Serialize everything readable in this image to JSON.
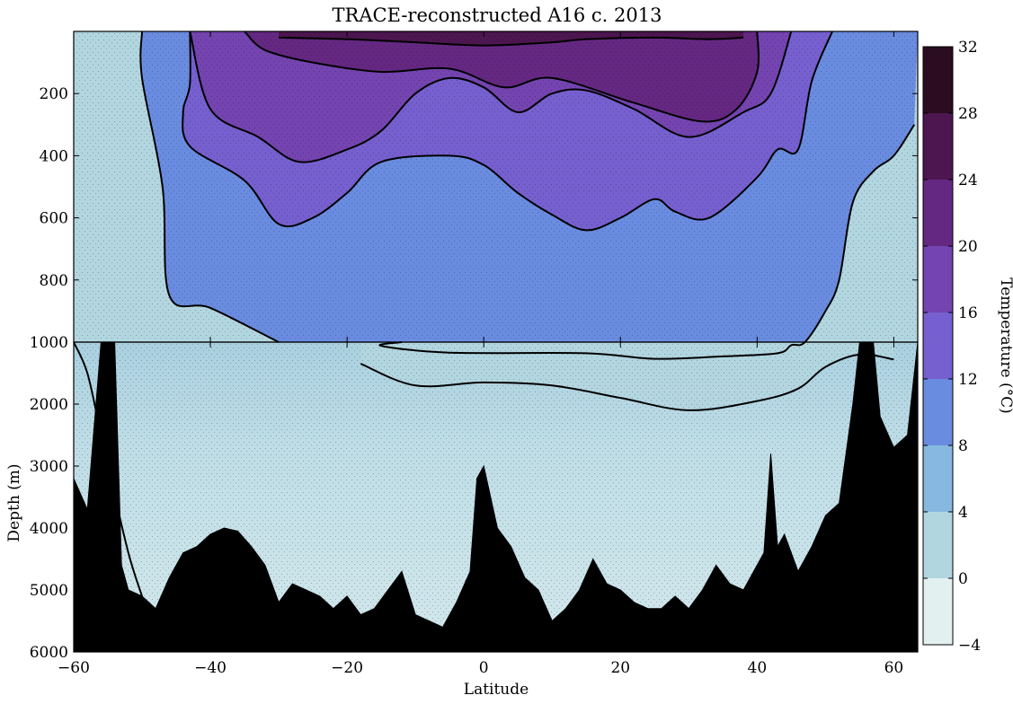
{
  "chart_data": {
    "type": "heatmap",
    "title": "TRACE-reconstructed A16 c. 2013",
    "xlabel": "Latitude",
    "ylabel": "Depth (m)",
    "colorbar_label": "Temperature (°C)",
    "xlim": [
      -60,
      63.5
    ],
    "x_ticks": [
      -60,
      -40,
      -20,
      0,
      20,
      40,
      60
    ],
    "x_tick_labels": [
      "−60",
      "−40",
      "−20",
      "0",
      "20",
      "40",
      "60"
    ],
    "upper_panel": {
      "ylim": [
        1000,
        0
      ],
      "y_ticks": [
        200,
        400,
        600,
        800,
        1000
      ],
      "y_tick_labels": [
        "200",
        "400",
        "600",
        "800",
        "1000"
      ]
    },
    "lower_panel": {
      "ylim": [
        6000,
        1000
      ],
      "y_ticks": [
        2000,
        3000,
        4000,
        5000,
        6000
      ],
      "y_tick_labels": [
        "2000",
        "3000",
        "4000",
        "5000",
        "6000"
      ]
    },
    "colorbar": {
      "levels": [
        -4,
        0,
        4,
        8,
        12,
        16,
        20,
        24,
        28,
        32
      ],
      "tick_labels": [
        "−4",
        "0",
        "4",
        "8",
        "12",
        "16",
        "20",
        "24",
        "28",
        "32"
      ],
      "colors": [
        "#e3f0f0",
        "#b2d6e0",
        "#86b8e0",
        "#6a8ce0",
        "#7660cf",
        "#7444b0",
        "#652882",
        "#4d1650",
        "#2a0d20"
      ]
    },
    "isotherms": [
      {
        "temp": 24,
        "points": [
          [
            -30,
            20
          ],
          [
            -20,
            25
          ],
          [
            -10,
            35
          ],
          [
            0,
            45
          ],
          [
            10,
            35
          ],
          [
            15,
            25
          ],
          [
            25,
            20
          ],
          [
            33,
            25
          ],
          [
            38,
            20
          ]
        ]
      },
      {
        "temp": 20,
        "points": [
          [
            -35,
            0
          ],
          [
            -32,
            60
          ],
          [
            -25,
            100
          ],
          [
            -15,
            130
          ],
          [
            -5,
            120
          ],
          [
            3,
            180
          ],
          [
            10,
            150
          ],
          [
            22,
            230
          ],
          [
            32,
            290
          ],
          [
            37,
            250
          ],
          [
            40,
            130
          ],
          [
            40,
            0
          ]
        ]
      },
      {
        "temp": 16,
        "points": [
          [
            -43,
            0
          ],
          [
            -40,
            250
          ],
          [
            -33,
            340
          ],
          [
            -27,
            420
          ],
          [
            -20,
            380
          ],
          [
            -15,
            320
          ],
          [
            -10,
            200
          ],
          [
            -5,
            150
          ],
          [
            0,
            180
          ],
          [
            5,
            260
          ],
          [
            10,
            200
          ],
          [
            15,
            190
          ],
          [
            22,
            250
          ],
          [
            30,
            340
          ],
          [
            38,
            260
          ],
          [
            42,
            200
          ],
          [
            45,
            0
          ]
        ]
      },
      {
        "temp": 12,
        "points": [
          [
            -43,
            0
          ],
          [
            -43,
            170
          ],
          [
            -44,
            260
          ],
          [
            -43,
            370
          ],
          [
            -35,
            480
          ],
          [
            -30,
            620
          ],
          [
            -25,
            600
          ],
          [
            -20,
            520
          ],
          [
            -15,
            420
          ],
          [
            -5,
            400
          ],
          [
            0,
            430
          ],
          [
            5,
            520
          ],
          [
            10,
            590
          ],
          [
            15,
            640
          ],
          [
            20,
            600
          ],
          [
            25,
            540
          ],
          [
            28,
            580
          ],
          [
            33,
            600
          ],
          [
            40,
            470
          ],
          [
            43,
            380
          ],
          [
            46,
            380
          ],
          [
            48,
            160
          ],
          [
            51,
            0
          ]
        ]
      },
      {
        "temp": 8,
        "points": [
          [
            -50,
            0
          ],
          [
            -50,
            150
          ],
          [
            -47,
            500
          ],
          [
            -46,
            850
          ],
          [
            -40,
            890
          ],
          [
            -30,
            1000
          ]
        ]
      },
      {
        "temp": 8,
        "points": [
          [
            -12,
            1000
          ],
          [
            -15,
            1060
          ],
          [
            -5,
            1170
          ],
          [
            15,
            1180
          ],
          [
            25,
            1270
          ],
          [
            35,
            1230
          ],
          [
            43,
            1180
          ],
          [
            45,
            1050
          ],
          [
            47,
            1000
          ],
          [
            50,
            900
          ],
          [
            52,
            800
          ],
          [
            54,
            550
          ],
          [
            57,
            450
          ],
          [
            60,
            400
          ],
          [
            63,
            300
          ]
        ]
      },
      {
        "temp": 4,
        "points": [
          [
            -60,
            1000
          ],
          [
            -58,
            1500
          ],
          [
            -56,
            2500
          ],
          [
            -55,
            3000
          ],
          [
            -52,
            4400
          ],
          [
            -50,
            5100
          ]
        ]
      },
      {
        "temp": 4,
        "points": [
          [
            -18,
            1350
          ],
          [
            -10,
            1700
          ],
          [
            0,
            1650
          ],
          [
            10,
            1700
          ],
          [
            20,
            1900
          ],
          [
            30,
            2100
          ],
          [
            40,
            1950
          ],
          [
            46,
            1750
          ],
          [
            50,
            1400
          ],
          [
            55,
            1200
          ],
          [
            60,
            1280
          ]
        ]
      }
    ],
    "bathymetry": {
      "lat": [
        -60,
        -58,
        -56,
        -55,
        -54.5,
        -54,
        -53,
        -52,
        -50,
        -48,
        -46,
        -44,
        -42,
        -40,
        -38,
        -36,
        -34,
        -32,
        -30,
        -28,
        -26,
        -24,
        -22,
        -20,
        -18,
        -16,
        -14,
        -12,
        -10,
        -8,
        -6,
        -4,
        -2,
        -1,
        0,
        1,
        2,
        4,
        6,
        8,
        10,
        12,
        14,
        16,
        18,
        20,
        22,
        24,
        26,
        28,
        30,
        32,
        34,
        36,
        38,
        40,
        41,
        42,
        43,
        44,
        46,
        48,
        50,
        52,
        54,
        55,
        56,
        57,
        58,
        60,
        62,
        63.5
      ],
      "depth": [
        3200,
        3700,
        1000,
        1000,
        1000,
        1000,
        4600,
        5000,
        5100,
        5300,
        4800,
        4400,
        4300,
        4100,
        4000,
        4050,
        4300,
        4600,
        5200,
        4900,
        5000,
        5100,
        5300,
        5100,
        5400,
        5300,
        5000,
        4700,
        5400,
        5500,
        5600,
        5200,
        4700,
        3200,
        3000,
        3500,
        4000,
        4300,
        4800,
        5000,
        5500,
        5300,
        5000,
        4500,
        4900,
        5000,
        5200,
        5300,
        5300,
        5100,
        5300,
        5000,
        4600,
        4900,
        5000,
        4600,
        4400,
        2800,
        4300,
        4100,
        4700,
        4300,
        3800,
        3600,
        2000,
        1000,
        1000,
        1000,
        2200,
        2700,
        2500,
        1000
      ]
    }
  }
}
